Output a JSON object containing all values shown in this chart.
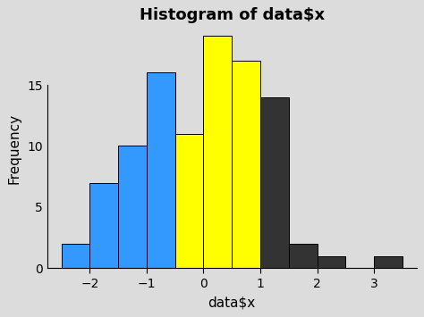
{
  "title": "Histogram of data$x",
  "xlabel": "data$x",
  "ylabel": "Frequency",
  "bar_lefts": [
    -2.5,
    -2.0,
    -1.5,
    -1.0,
    -0.5,
    0.0,
    0.5,
    1.0,
    1.5,
    2.0,
    3.0
  ],
  "bar_heights": [
    2,
    7,
    10,
    16,
    11,
    19,
    17,
    14,
    2,
    1,
    1
  ],
  "bar_width": 0.5,
  "bar_colors": [
    "#3399FF",
    "#3399FF",
    "#3399FF",
    "#3399FF",
    "#FFFF00",
    "#FFFF00",
    "#FFFF00",
    "#333333",
    "#333333",
    "#333333",
    "#333333"
  ],
  "bar_edgecolor": "#000000",
  "xlim": [
    -2.75,
    3.75
  ],
  "ylim": [
    0,
    19.5
  ],
  "yticks": [
    0,
    5,
    10,
    15
  ],
  "xticks": [
    -2,
    -1,
    0,
    1,
    2,
    3
  ],
  "bg_color": "#DCDCDC",
  "title_fontsize": 13,
  "title_fontweight": "bold",
  "label_fontsize": 11,
  "tick_fontsize": 10
}
